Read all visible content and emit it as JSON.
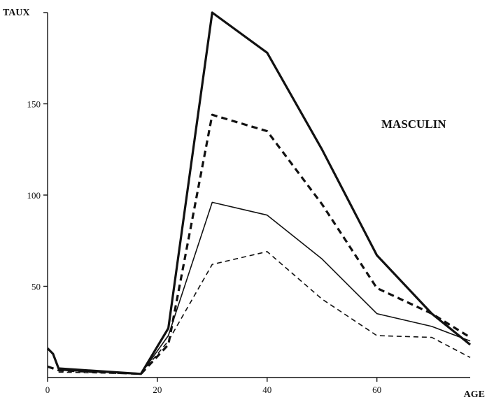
{
  "chart_data": {
    "type": "line",
    "title": "MASCULIN",
    "xlabel": "AGE",
    "ylabel": "TAUX",
    "xlim": [
      0,
      77
    ],
    "ylim": [
      0,
      200
    ],
    "x_ticks": [
      0,
      20,
      40,
      60
    ],
    "y_ticks": [
      50,
      100,
      150
    ],
    "x_tick_labels": [
      "0",
      "20",
      "40",
      "60"
    ],
    "y_tick_labels": [
      "50",
      "100",
      "150"
    ],
    "grid": false,
    "legend": "none",
    "series": [
      {
        "style": "solid-thick",
        "points": [
          [
            0,
            16
          ],
          [
            1,
            13
          ],
          [
            2,
            5
          ],
          [
            17,
            2
          ],
          [
            22,
            27
          ],
          [
            30,
            200
          ],
          [
            40,
            178
          ],
          [
            50,
            125
          ],
          [
            60,
            67
          ],
          [
            70,
            35
          ],
          [
            77,
            18
          ]
        ]
      },
      {
        "style": "dashed-thick",
        "points": [
          [
            0,
            6
          ],
          [
            2,
            4
          ],
          [
            17,
            2
          ],
          [
            22,
            18
          ],
          [
            30,
            144
          ],
          [
            40,
            135
          ],
          [
            50,
            95
          ],
          [
            60,
            49
          ],
          [
            70,
            35
          ],
          [
            77,
            22
          ]
        ]
      },
      {
        "style": "solid-thin",
        "points": [
          [
            2,
            4
          ],
          [
            17,
            2
          ],
          [
            22,
            23
          ],
          [
            30,
            96
          ],
          [
            40,
            89
          ],
          [
            50,
            65
          ],
          [
            60,
            35
          ],
          [
            70,
            28
          ],
          [
            77,
            20
          ]
        ]
      },
      {
        "style": "dashed-thin",
        "points": [
          [
            2,
            3
          ],
          [
            17,
            2
          ],
          [
            22,
            20
          ],
          [
            30,
            62
          ],
          [
            40,
            69
          ],
          [
            50,
            43
          ],
          [
            60,
            23
          ],
          [
            70,
            22
          ],
          [
            77,
            11
          ]
        ]
      }
    ]
  },
  "colors": {
    "ink": "#111111",
    "background": "#ffffff"
  }
}
